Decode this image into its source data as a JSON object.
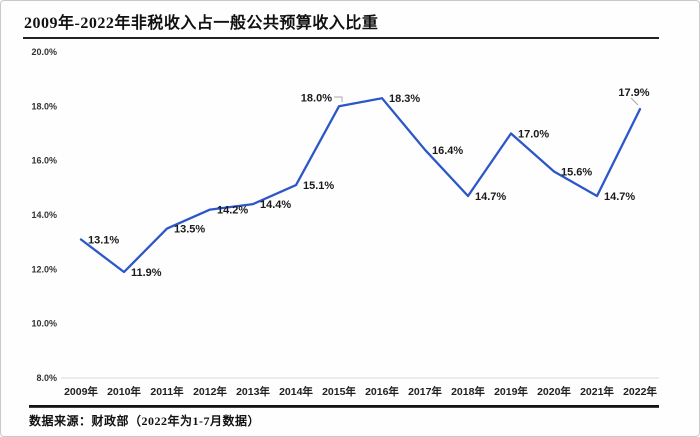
{
  "chart_data": {
    "type": "line",
    "title": "2009年-2022年非税收入占一般公共预算收入比重",
    "source_note": "数据来源：财政部（2022年为1-7月数据）",
    "categories": [
      "2009年",
      "2010年",
      "2011年",
      "2012年",
      "2013年",
      "2014年",
      "2015年",
      "2016年",
      "2017年",
      "2018年",
      "2019年",
      "2020年",
      "2021年",
      "2022年"
    ],
    "values": [
      13.1,
      11.9,
      13.5,
      14.2,
      14.4,
      15.1,
      18.0,
      18.3,
      16.4,
      14.7,
      17.0,
      15.6,
      14.7,
      17.9
    ],
    "labels": [
      "13.1%",
      "11.9%",
      "13.5%",
      "14.2%",
      "14.4%",
      "15.1%",
      "18.0%",
      "18.3%",
      "16.4%",
      "14.7%",
      "17.0%",
      "15.6%",
      "14.7%",
      "17.9%"
    ],
    "ylim": [
      8.0,
      20.0
    ],
    "ytick_step": 2.0,
    "yticks": [
      "20.0%",
      "18.0%",
      "16.0%",
      "14.0%",
      "12.0%",
      "10.0%",
      "8.0%"
    ],
    "grid": false,
    "legend": "none",
    "line_color": "#2B57C8",
    "axis_line_color": "#d9d9d9",
    "leader_line_color": "#a9a9a9",
    "label_color": "#1a1a1a",
    "bottom_rule_color": "#121212"
  }
}
